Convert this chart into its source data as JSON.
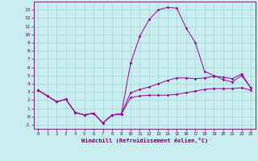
{
  "xlabel": "Windchill (Refroidissement éolien,°C)",
  "background_color": "#c8eef0",
  "grid_color": "#a8d4d8",
  "line_color": "#990099",
  "x_values": [
    0,
    1,
    2,
    3,
    4,
    5,
    6,
    7,
    8,
    9,
    10,
    11,
    12,
    13,
    14,
    15,
    16,
    17,
    18,
    19,
    20,
    21,
    22,
    23
  ],
  "line_temp": [
    3.2,
    2.5,
    1.8,
    2.1,
    0.5,
    0.2,
    0.4,
    -0.8,
    0.2,
    0.3,
    2.3,
    2.5,
    2.6,
    2.6,
    2.6,
    2.7,
    2.9,
    3.1,
    3.3,
    3.4,
    3.4,
    3.4,
    3.5,
    3.2
  ],
  "line_max": [
    3.2,
    2.5,
    1.8,
    2.1,
    0.5,
    0.2,
    0.4,
    -0.8,
    0.2,
    0.3,
    2.9,
    3.3,
    3.6,
    4.0,
    4.4,
    4.7,
    4.7,
    4.6,
    4.7,
    4.9,
    4.8,
    4.6,
    5.2,
    3.5
  ],
  "line_wc": [
    3.2,
    2.5,
    1.8,
    2.1,
    0.5,
    0.2,
    0.4,
    -0.8,
    0.2,
    0.3,
    6.5,
    9.8,
    11.8,
    13.0,
    13.3,
    13.2,
    10.8,
    9.0,
    5.5,
    5.0,
    4.5,
    4.2,
    5.0,
    3.5
  ],
  "ylim": [
    -1.5,
    14.0
  ],
  "xlim": [
    -0.5,
    23.5
  ],
  "yticks": [
    -1,
    0,
    1,
    2,
    3,
    4,
    5,
    6,
    7,
    8,
    9,
    10,
    11,
    12,
    13
  ],
  "xticks": [
    0,
    1,
    2,
    3,
    4,
    5,
    6,
    7,
    8,
    9,
    10,
    11,
    12,
    13,
    14,
    15,
    16,
    17,
    18,
    19,
    20,
    21,
    22,
    23
  ],
  "figwidth": 3.2,
  "figheight": 2.0,
  "dpi": 100
}
